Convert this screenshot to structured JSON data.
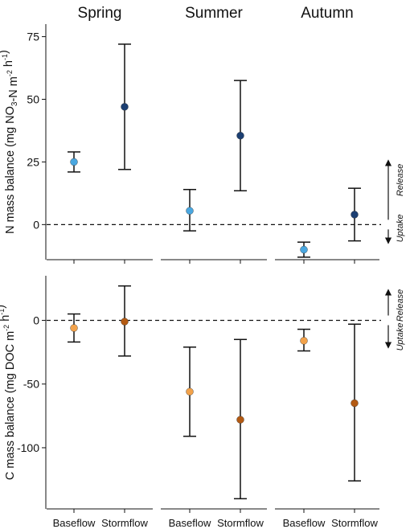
{
  "chart_data": {
    "type": "scatter",
    "style": "point-with-error-bars",
    "seasons": [
      "Spring",
      "Summer",
      "Autumn"
    ],
    "categories": [
      "Baseflow",
      "Stormflow"
    ],
    "colors": {
      "n_baseflow": "#4aa7e0",
      "n_stormflow": "#1c3f72",
      "c_baseflow": "#f2a24b",
      "c_stormflow": "#b35a13"
    },
    "panels": [
      {
        "id": "n",
        "ylabel": {
          "parts": [
            {
              "t": "N mass balance (mg NO"
            },
            {
              "t": "3",
              "sub": true
            },
            {
              "t": "-N m"
            },
            {
              "t": "-2",
              "sup": true
            },
            {
              "t": " h"
            },
            {
              "t": "-1",
              "sup": true
            },
            {
              "t": ")"
            }
          ]
        },
        "ylim": [
          -14,
          80
        ],
        "yticks": [
          0,
          25,
          50,
          75
        ],
        "zero_line": true,
        "arrow_labels": [
          "Release",
          "Uptake"
        ],
        "points": [
          {
            "season": "Spring",
            "category": "Baseflow",
            "y": 25,
            "low": 21,
            "high": 29,
            "color": "n_baseflow"
          },
          {
            "season": "Spring",
            "category": "Stormflow",
            "y": 47,
            "low": 22,
            "high": 72,
            "color": "n_stormflow"
          },
          {
            "season": "Summer",
            "category": "Baseflow",
            "y": 5.5,
            "low": -2.5,
            "high": 14,
            "color": "n_baseflow"
          },
          {
            "season": "Summer",
            "category": "Stormflow",
            "y": 35.5,
            "low": 13.5,
            "high": 57.5,
            "color": "n_stormflow"
          },
          {
            "season": "Autumn",
            "category": "Baseflow",
            "y": -10,
            "low": -13,
            "high": -7,
            "color": "n_baseflow"
          },
          {
            "season": "Autumn",
            "category": "Stormflow",
            "y": 4,
            "low": -6.5,
            "high": 14.5,
            "color": "n_stormflow"
          }
        ]
      },
      {
        "id": "c",
        "ylabel": {
          "parts": [
            {
              "t": "C mass balance (mg DOC m"
            },
            {
              "t": "-2",
              "sup": true
            },
            {
              "t": " h"
            },
            {
              "t": "-1",
              "sup": true
            },
            {
              "t": ")"
            }
          ]
        },
        "ylim": [
          -148,
          35
        ],
        "yticks": [
          -100,
          -50,
          0
        ],
        "zero_line": true,
        "arrow_labels": [
          "Release",
          "Uptake"
        ],
        "points": [
          {
            "season": "Spring",
            "category": "Baseflow",
            "y": -6,
            "low": -17,
            "high": 5,
            "color": "c_baseflow"
          },
          {
            "season": "Spring",
            "category": "Stormflow",
            "y": -1,
            "low": -28,
            "high": 27,
            "color": "c_stormflow"
          },
          {
            "season": "Summer",
            "category": "Baseflow",
            "y": -56,
            "low": -91,
            "high": -21,
            "color": "c_baseflow"
          },
          {
            "season": "Summer",
            "category": "Stormflow",
            "y": -78,
            "low": -140,
            "high": -15,
            "color": "c_stormflow"
          },
          {
            "season": "Autumn",
            "category": "Baseflow",
            "y": -16,
            "low": -24,
            "high": -7,
            "color": "c_baseflow"
          },
          {
            "season": "Autumn",
            "category": "Stormflow",
            "y": -65,
            "low": -126,
            "high": -3,
            "color": "c_stormflow"
          }
        ]
      }
    ]
  }
}
